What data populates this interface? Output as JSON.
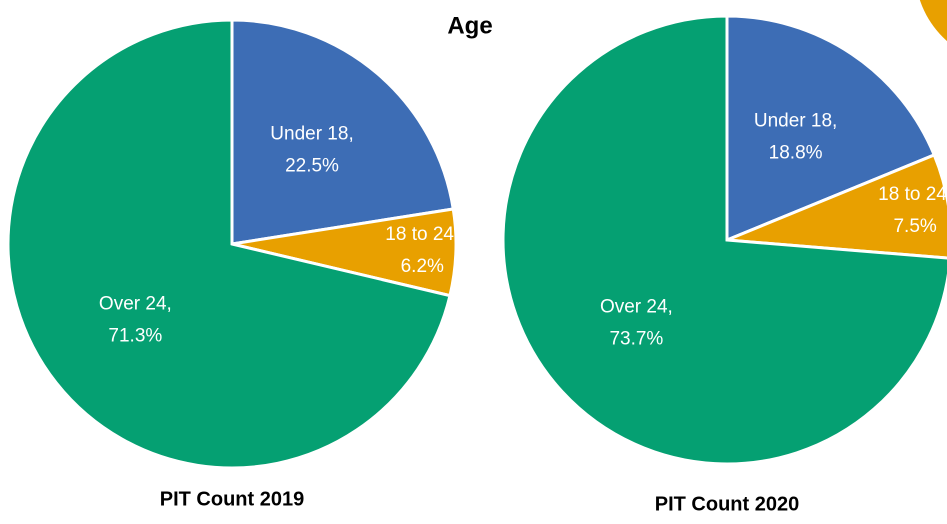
{
  "title": "Age",
  "chart_data": [
    {
      "type": "pie",
      "title": "PIT Count 2019",
      "categories": [
        "Under 18,",
        "18 to 24,",
        "Over 24,"
      ],
      "values": [
        22.5,
        6.2,
        71.3
      ],
      "value_labels": [
        "22.5%",
        "6.2%",
        "71.3%"
      ],
      "colors": [
        "#3d6db5",
        "#e8a000",
        "#05a072"
      ]
    },
    {
      "type": "pie",
      "title": "PIT Count 2020",
      "categories": [
        "Under 18,",
        "18 to 24,",
        "Over 24,"
      ],
      "values": [
        18.8,
        7.5,
        73.7
      ],
      "value_labels": [
        "18.8%",
        "7.5%",
        "73.7%"
      ],
      "colors": [
        "#3d6db5",
        "#e8a000",
        "#05a072"
      ]
    }
  ]
}
